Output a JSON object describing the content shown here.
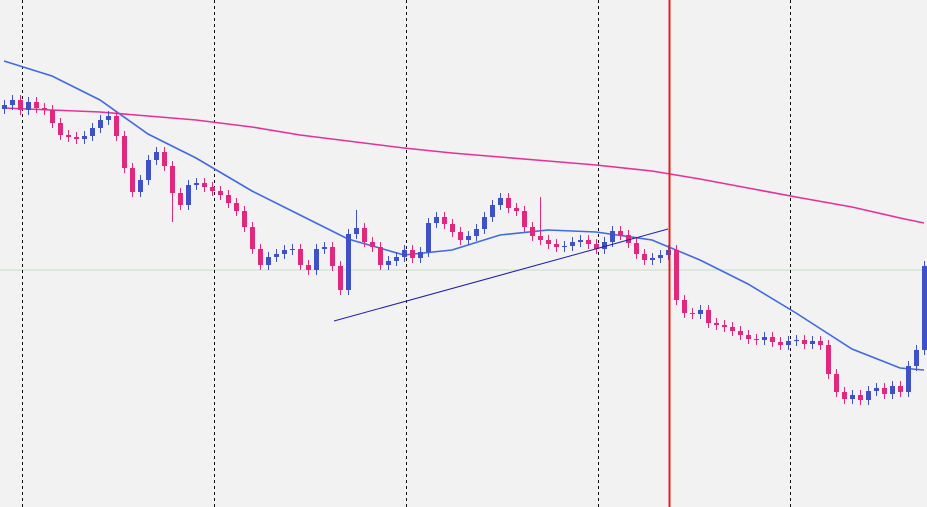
{
  "chart_data": {
    "type": "candlestick",
    "ylim": [
      0,
      507
    ],
    "up_color": "#3f51c7",
    "down_color": "#e0287d",
    "open": [
      398,
      402,
      407,
      397,
      405,
      399,
      397,
      384,
      372,
      370,
      368,
      371,
      379,
      387,
      391,
      371,
      339,
      315,
      327,
      347,
      355,
      341,
      314,
      302,
      322,
      324,
      320,
      316,
      312,
      304,
      296,
      280,
      258,
      242,
      250,
      253,
      257,
      258,
      242,
      237,
      258,
      260,
      241,
      217,
      273,
      279,
      265,
      260,
      242,
      246,
      250,
      257,
      249,
      255,
      284,
      290,
      283,
      275,
      267,
      271,
      278,
      290,
      302,
      309,
      299,
      296,
      280,
      271,
      267,
      263,
      260,
      261,
      265,
      267,
      263,
      258,
      265,
      276,
      272,
      264,
      253,
      247,
      249,
      252,
      257,
      207,
      194,
      193,
      197,
      184,
      182,
      180,
      176,
      172,
      168,
      167,
      170,
      165,
      162,
      166,
      167,
      163,
      166,
      162,
      133,
      115,
      108,
      112,
      107,
      116,
      119,
      113,
      121,
      115,
      141,
      157
    ],
    "high": [
      407,
      412,
      412,
      410,
      410,
      404,
      402,
      389,
      377,
      375,
      376,
      384,
      392,
      396,
      396,
      376,
      344,
      332,
      352,
      360,
      360,
      346,
      319,
      327,
      329,
      329,
      325,
      321,
      317,
      309,
      301,
      285,
      263,
      255,
      258,
      262,
      263,
      263,
      247,
      263,
      265,
      265,
      246,
      278,
      297,
      284,
      270,
      265,
      251,
      255,
      262,
      262,
      260,
      289,
      295,
      295,
      288,
      280,
      276,
      283,
      295,
      307,
      314,
      314,
      304,
      301,
      285,
      310,
      272,
      268,
      266,
      270,
      272,
      272,
      268,
      270,
      281,
      281,
      277,
      269,
      258,
      254,
      257,
      262,
      262,
      212,
      199,
      202,
      202,
      189,
      187,
      185,
      181,
      177,
      173,
      175,
      175,
      170,
      171,
      172,
      172,
      171,
      171,
      167,
      138,
      120,
      117,
      117,
      121,
      124,
      124,
      126,
      126,
      146,
      162,
      246
    ],
    "low": [
      393,
      397,
      392,
      392,
      394,
      392,
      379,
      367,
      365,
      363,
      363,
      366,
      374,
      382,
      366,
      334,
      310,
      310,
      322,
      342,
      336,
      285,
      297,
      297,
      317,
      315,
      311,
      307,
      299,
      291,
      275,
      253,
      237,
      237,
      245,
      248,
      252,
      237,
      232,
      232,
      253,
      236,
      212,
      212,
      268,
      260,
      255,
      237,
      237,
      241,
      245,
      244,
      244,
      250,
      279,
      278,
      270,
      262,
      262,
      266,
      273,
      285,
      297,
      294,
      291,
      275,
      266,
      262,
      258,
      255,
      255,
      256,
      260,
      258,
      253,
      253,
      260,
      267,
      259,
      248,
      242,
      242,
      244,
      247,
      202,
      189,
      188,
      188,
      179,
      177,
      175,
      171,
      167,
      163,
      162,
      162,
      160,
      157,
      157,
      161,
      158,
      158,
      157,
      128,
      110,
      103,
      103,
      102,
      102,
      111,
      108,
      108,
      110,
      110,
      136,
      152
    ],
    "close": [
      402,
      407,
      397,
      405,
      399,
      397,
      384,
      372,
      370,
      368,
      371,
      379,
      387,
      391,
      371,
      339,
      315,
      327,
      347,
      355,
      341,
      314,
      302,
      322,
      324,
      320,
      316,
      312,
      304,
      296,
      280,
      258,
      242,
      250,
      253,
      257,
      258,
      242,
      237,
      258,
      260,
      241,
      217,
      273,
      279,
      265,
      260,
      242,
      246,
      250,
      257,
      249,
      255,
      284,
      290,
      283,
      275,
      267,
      271,
      278,
      290,
      302,
      309,
      299,
      296,
      280,
      271,
      267,
      263,
      260,
      261,
      265,
      267,
      263,
      258,
      265,
      276,
      272,
      264,
      253,
      247,
      249,
      252,
      257,
      207,
      194,
      193,
      197,
      184,
      182,
      180,
      176,
      172,
      168,
      167,
      170,
      165,
      162,
      166,
      167,
      163,
      166,
      162,
      133,
      115,
      108,
      112,
      107,
      116,
      119,
      113,
      121,
      115,
      141,
      157,
      241
    ],
    "series": [
      {
        "color": "#4169e1",
        "x": [
          0,
          6,
          12,
          18,
          24,
          31,
          37,
          43,
          50,
          56,
          62,
          68,
          74,
          81,
          87,
          93,
          99,
          106,
          112,
          115
        ],
        "values": [
          446,
          431,
          407,
          373,
          349,
          316,
          292,
          268,
          252,
          257,
          272,
          277,
          275,
          267,
          247,
          223,
          194,
          158,
          139,
          137
        ]
      },
      {
        "color": "#e6309a",
        "x": [
          0,
          6,
          12,
          18,
          24,
          31,
          37,
          43,
          50,
          56,
          62,
          68,
          74,
          81,
          87,
          93,
          99,
          106,
          112,
          115
        ],
        "values": [
          399,
          397,
          395,
          391,
          387,
          380,
          372,
          366,
          359,
          354,
          350,
          346,
          342,
          336,
          328,
          319,
          310,
          300,
          289,
          284
        ]
      }
    ]
  }
}
